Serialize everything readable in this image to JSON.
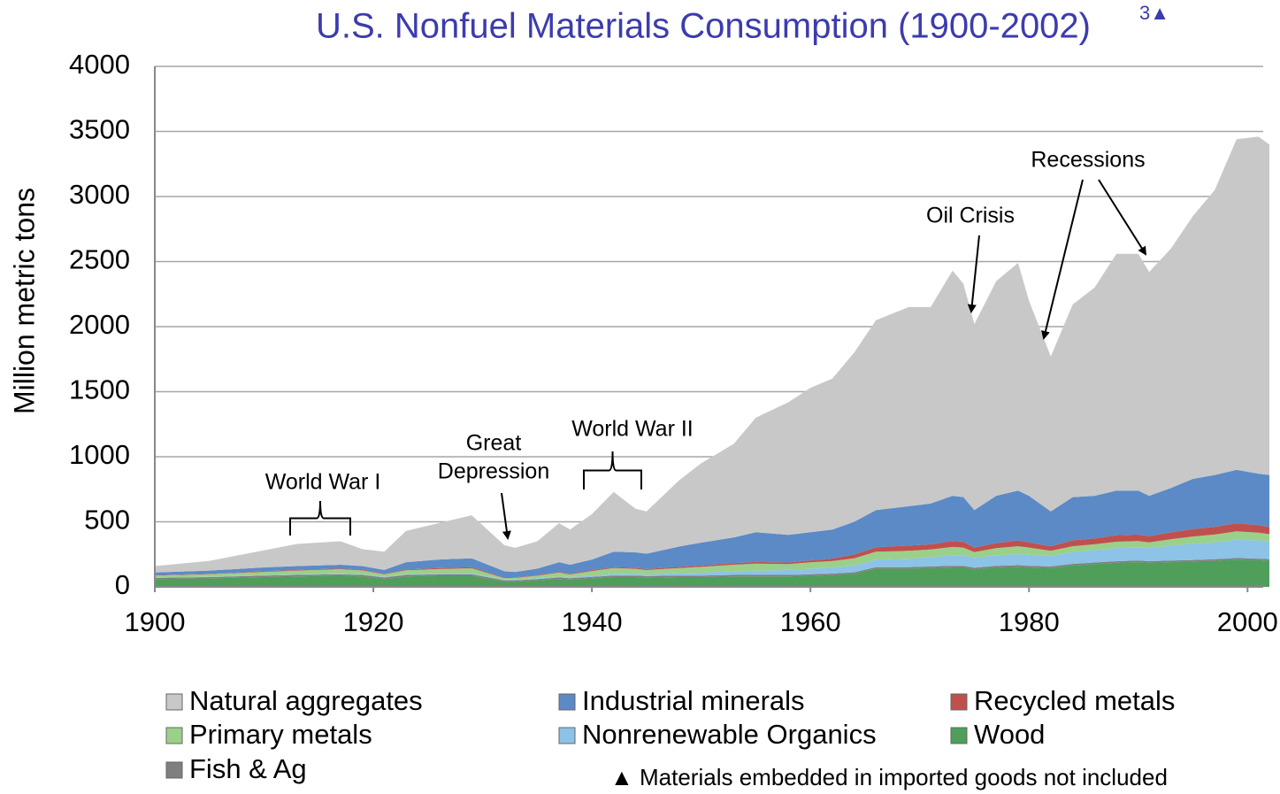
{
  "chart_data": {
    "type": "stacked_area",
    "title": "U.S. Nonfuel Materials Consumption (1900-2002)",
    "title_note": "3▲",
    "ylabel": "Million metric tons",
    "footnote": "▲ Materials embedded in imported goods not included",
    "xlim": [
      1900,
      2002
    ],
    "xticks": [
      1900,
      1920,
      1940,
      1960,
      1980,
      2000
    ],
    "ylim": [
      0,
      4000
    ],
    "yticks": [
      0,
      500,
      1000,
      1500,
      2000,
      2500,
      3000,
      3500,
      4000
    ],
    "grid": true,
    "x": [
      1900,
      1905,
      1910,
      1913,
      1917,
      1919,
      1921,
      1923,
      1926,
      1929,
      1932,
      1933,
      1935,
      1937,
      1938,
      1940,
      1942,
      1944,
      1945,
      1948,
      1950,
      1953,
      1955,
      1958,
      1960,
      1962,
      1964,
      1966,
      1969,
      1971,
      1973,
      1974,
      1975,
      1977,
      1979,
      1980,
      1982,
      1984,
      1986,
      1988,
      1990,
      1991,
      1993,
      1995,
      1997,
      1999,
      2001,
      2002
    ],
    "series": [
      {
        "name": "Wood",
        "color": "#4f9e5a",
        "values": [
          60,
          65,
          75,
          80,
          85,
          80,
          60,
          80,
          85,
          85,
          40,
          40,
          50,
          60,
          55,
          65,
          75,
          75,
          70,
          75,
          75,
          80,
          80,
          80,
          85,
          90,
          100,
          140,
          140,
          145,
          150,
          150,
          135,
          150,
          155,
          150,
          145,
          165,
          175,
          185,
          190,
          185,
          190,
          195,
          200,
          210,
          205,
          200
        ]
      },
      {
        "name": "Fish & Ag",
        "color": "#7f7f7f",
        "values": [
          10,
          10,
          12,
          12,
          12,
          12,
          12,
          12,
          12,
          12,
          10,
          10,
          10,
          12,
          12,
          12,
          12,
          12,
          12,
          12,
          12,
          12,
          12,
          12,
          12,
          12,
          12,
          12,
          12,
          12,
          12,
          12,
          12,
          12,
          12,
          12,
          12,
          12,
          12,
          12,
          12,
          12,
          12,
          12,
          12,
          12,
          12,
          12
        ]
      },
      {
        "name": "Nonrenewable Organics",
        "color": "#8cc3e6",
        "values": [
          2,
          2,
          3,
          3,
          4,
          4,
          4,
          5,
          5,
          6,
          5,
          5,
          6,
          8,
          8,
          10,
          12,
          12,
          12,
          18,
          22,
          28,
          32,
          38,
          42,
          46,
          52,
          58,
          65,
          70,
          80,
          80,
          75,
          80,
          85,
          85,
          80,
          90,
          95,
          100,
          100,
          100,
          115,
          125,
          130,
          140,
          140,
          135
        ]
      },
      {
        "name": "Primary metals",
        "color": "#9bd08a",
        "values": [
          15,
          20,
          25,
          30,
          35,
          30,
          20,
          30,
          35,
          40,
          12,
          14,
          20,
          30,
          20,
          35,
          45,
          40,
          35,
          40,
          45,
          50,
          55,
          45,
          50,
          50,
          55,
          60,
          60,
          60,
          65,
          60,
          45,
          55,
          60,
          55,
          40,
          45,
          45,
          50,
          50,
          45,
          50,
          55,
          60,
          65,
          60,
          58
        ]
      },
      {
        "name": "Recycled metals",
        "color": "#c0504d",
        "values": [
          3,
          3,
          5,
          5,
          6,
          6,
          4,
          6,
          7,
          8,
          4,
          4,
          5,
          6,
          5,
          7,
          8,
          8,
          8,
          10,
          10,
          12,
          12,
          12,
          15,
          20,
          30,
          35,
          40,
          40,
          45,
          45,
          35,
          40,
          45,
          40,
          35,
          45,
          45,
          50,
          50,
          48,
          52,
          58,
          60,
          62,
          58,
          55
        ]
      },
      {
        "name": "Industrial minerals",
        "color": "#5b8ac6",
        "values": [
          20,
          25,
          30,
          30,
          28,
          28,
          30,
          57,
          66,
          69,
          49,
          42,
          49,
          74,
          70,
          81,
          118,
          118,
          118,
          155,
          176,
          198,
          229,
          213,
          216,
          222,
          251,
          285,
          303,
          313,
          348,
          343,
          288,
          363,
          383,
          358,
          268,
          333,
          328,
          343,
          338,
          310,
          341,
          385,
          398,
          411,
          395,
          400
        ]
      },
      {
        "name": "Natural aggregates",
        "color": "#c8c8c8",
        "values": [
          50,
          75,
          130,
          170,
          180,
          130,
          140,
          240,
          280,
          330,
          200,
          185,
          210,
          300,
          270,
          350,
          460,
          335,
          325,
          510,
          610,
          720,
          880,
          1020,
          1110,
          1160,
          1300,
          1460,
          1530,
          1510,
          1730,
          1640,
          1430,
          1650,
          1750,
          1500,
          1190,
          1480,
          1600,
          1820,
          1820,
          1720,
          1840,
          2020,
          2190,
          2540,
          2590,
          2540
        ]
      }
    ],
    "annotations": [
      {
        "lines": [
          "World War I"
        ]
      },
      {
        "lines": [
          "Great",
          "Depression"
        ]
      },
      {
        "lines": [
          "World War II"
        ]
      },
      {
        "lines": [
          "Oil Crisis"
        ]
      },
      {
        "lines": [
          "Recessions"
        ]
      }
    ]
  }
}
